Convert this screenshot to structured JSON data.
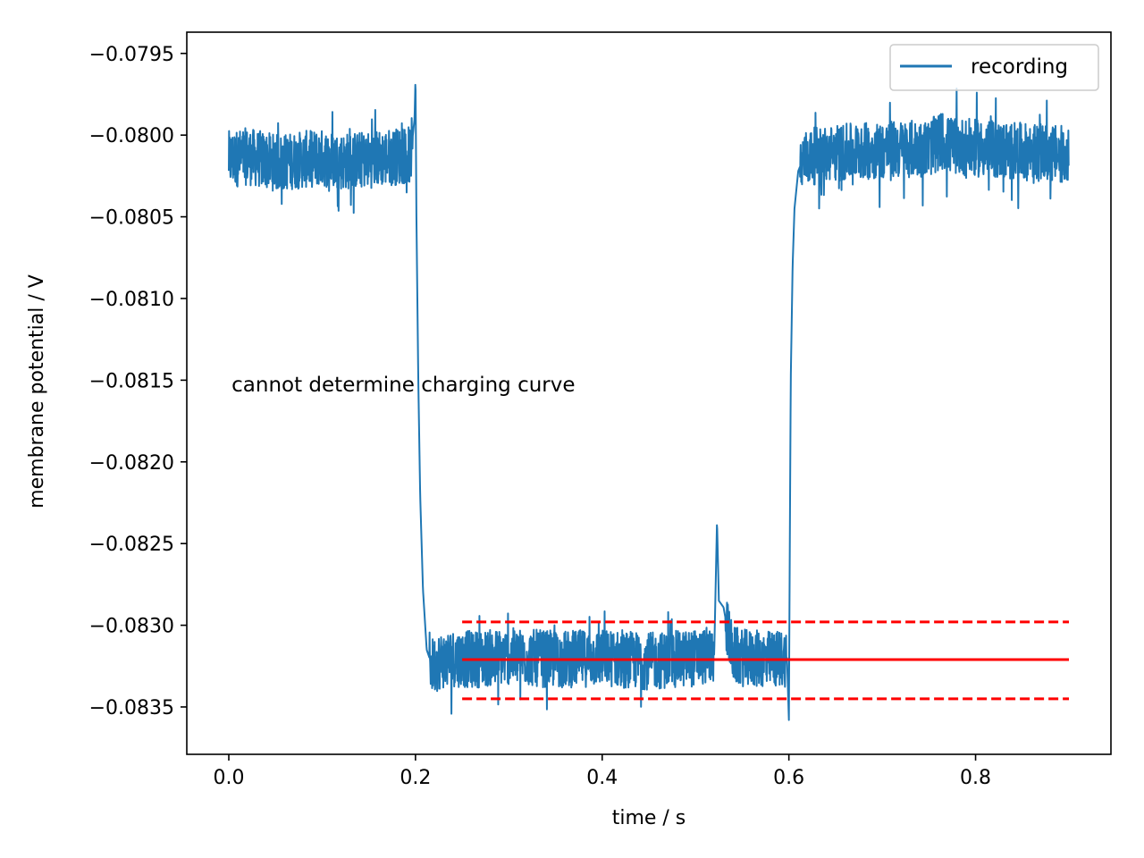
{
  "chart_data": {
    "type": "line",
    "title": "",
    "xlabel": "time / s",
    "ylabel": "membrane potential / V",
    "xlim": [
      -0.045,
      0.945
    ],
    "ylim": [
      -0.08379,
      -0.07937
    ],
    "xticks": [
      {
        "value": 0.0,
        "label": "0.0"
      },
      {
        "value": 0.2,
        "label": "0.2"
      },
      {
        "value": 0.4,
        "label": "0.4"
      },
      {
        "value": 0.6,
        "label": "0.6"
      },
      {
        "value": 0.8,
        "label": "0.8"
      }
    ],
    "yticks": [
      {
        "value": -0.0795,
        "label": "−0.0795"
      },
      {
        "value": -0.08,
        "label": "−0.0800"
      },
      {
        "value": -0.0805,
        "label": "−0.0805"
      },
      {
        "value": -0.081,
        "label": "−0.0810"
      },
      {
        "value": -0.0815,
        "label": "−0.0815"
      },
      {
        "value": -0.082,
        "label": "−0.0820"
      },
      {
        "value": -0.0825,
        "label": "−0.0825"
      },
      {
        "value": -0.083,
        "label": "−0.0830"
      },
      {
        "value": -0.0835,
        "label": "−0.0835"
      }
    ],
    "grid": false,
    "legend": {
      "position": "top-right",
      "entries": [
        "recording"
      ]
    },
    "series": [
      {
        "name": "recording",
        "color": "#1f77b4",
        "x": [
          0.0,
          0.02,
          0.05,
          0.08,
          0.1,
          0.12,
          0.15,
          0.18,
          0.195,
          0.199,
          0.2,
          0.201,
          0.203,
          0.205,
          0.208,
          0.212,
          0.218,
          0.225,
          0.24,
          0.26,
          0.3,
          0.35,
          0.4,
          0.45,
          0.5,
          0.52,
          0.523,
          0.525,
          0.53,
          0.535,
          0.54,
          0.55,
          0.58,
          0.598,
          0.6,
          0.601,
          0.602,
          0.604,
          0.606,
          0.61,
          0.615,
          0.625,
          0.65,
          0.7,
          0.75,
          0.765,
          0.77,
          0.8,
          0.85,
          0.9
        ],
        "y": [
          -0.08015,
          -0.08013,
          -0.08017,
          -0.08015,
          -0.08014,
          -0.08016,
          -0.08015,
          -0.08013,
          -0.08012,
          -0.0799,
          -0.07964,
          -0.0805,
          -0.0815,
          -0.0822,
          -0.08278,
          -0.08315,
          -0.08325,
          -0.08322,
          -0.0832,
          -0.08321,
          -0.08319,
          -0.08321,
          -0.0832,
          -0.08322,
          -0.0832,
          -0.08318,
          -0.08236,
          -0.08285,
          -0.08289,
          -0.08305,
          -0.08318,
          -0.0832,
          -0.08321,
          -0.0832,
          -0.08358,
          -0.0825,
          -0.0815,
          -0.0808,
          -0.08045,
          -0.08022,
          -0.08015,
          -0.08013,
          -0.08011,
          -0.08009,
          -0.08008,
          -0.08003,
          -0.08006,
          -0.08008,
          -0.0801,
          -0.08012
        ],
        "noise": 0.00022
      }
    ],
    "reference_lines": [
      {
        "name": "mean",
        "color": "#ff0000",
        "style": "solid",
        "x": [
          0.25,
          0.9
        ],
        "y": -0.08321
      },
      {
        "name": "upper",
        "color": "#ff0000",
        "style": "dashed",
        "x": [
          0.25,
          0.9
        ],
        "y": -0.08298
      },
      {
        "name": "lower",
        "color": "#ff0000",
        "style": "dashed",
        "x": [
          0.25,
          0.9
        ],
        "y": -0.08345
      }
    ],
    "annotations": [
      {
        "text": "cannot determine charging curve",
        "x": 0.003,
        "y": -0.08157
      }
    ]
  }
}
